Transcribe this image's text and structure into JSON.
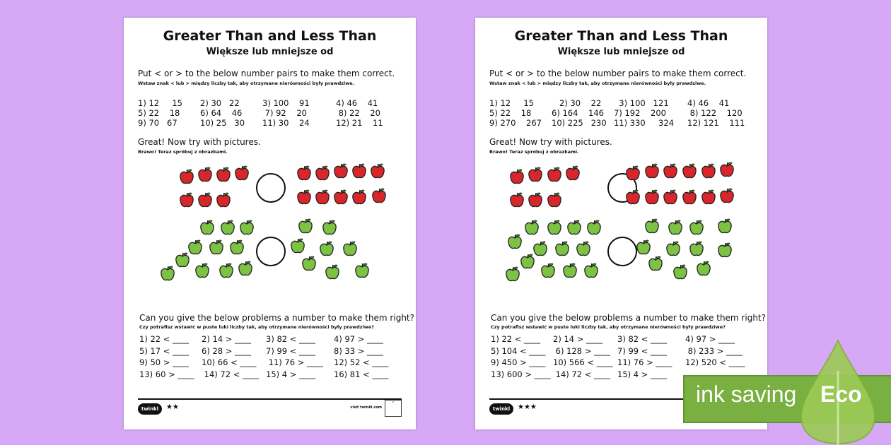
{
  "sheets": [
    {
      "title": "Greater Than and Less Than",
      "subtitle": "Większe lub mniejsze od",
      "instr1": "Put < or > to the below number pairs to make them correct.",
      "instr1_pl": "Wstaw znak < lub > między liczby tak, aby otrzymane nierówności były prawdziwe.",
      "pairs": [
        [
          "1) 12     15",
          "2) 30   22",
          "3) 100    91",
          "4) 46    41"
        ],
        [
          "5) 22    18",
          "6) 64    46",
          " 7) 92    20",
          " 8) 22    20"
        ],
        [
          "9) 70   67",
          "10) 25   30",
          "11) 30    24",
          "12) 21    11"
        ]
      ],
      "instr2": "Great! Now try with pictures.",
      "instr2_pl": "Brawo! Teraz spróbuj z obrazkami.",
      "instr3": "Can you give the below problems a number to make them right?",
      "instr3_pl": "Czy potrafisz wstawić w puste luki liczby tak, aby otrzymane nierówności były prawdziwe?",
      "problems": [
        [
          "1) 22 < ____",
          "2) 14 > ____",
          "3) 82 < ____",
          "4) 97 > ____"
        ],
        [
          "5) 17 < ____",
          "6) 28 > ____",
          "7) 99 < ____",
          "8) 33 > ____"
        ],
        [
          "9) 50 > ____",
          "10) 66 < ____",
          " 11) 76 > ____",
          "12) 52 < ____"
        ],
        [
          "13) 60 > ____",
          " 14) 72 < ____",
          "15) 4 > ____",
          "16) 81 < ____"
        ]
      ],
      "logo": "twinkl",
      "stars": "★★",
      "visit": "visit twinkl.com"
    },
    {
      "title": "Greater Than and Less Than",
      "subtitle": "Większe lub mniejsze od",
      "instr1": "Put < or > to the below number pairs to make them correct.",
      "instr1_pl": "Wstaw znak < lub > między liczby tak, aby otrzymane nierówności były prawdziwe.",
      "pairs": [
        [
          "1) 12     15",
          "   2) 30    22",
          "  3) 100   121",
          "4) 46    41"
        ],
        [
          "5) 22    18",
          "6) 164    146",
          "7) 192    200",
          " 8) 122    120"
        ],
        [
          "9) 270    267",
          "10) 225   230",
          "11) 330     324",
          "12) 121    111"
        ]
      ],
      "instr2": "Great! Now try with pictures.",
      "instr2_pl": "Brawo! Teraz spróbuj z obrazkami.",
      "instr3": "Can you give the below problems a number to make them right?",
      "instr3_pl": "Czy potrafisz wstawić w puste luki liczby tak, aby otrzymane nierówności były prawdziwe?",
      "problems": [
        [
          "1) 22 < ____",
          "2) 14 > ____",
          "3) 82 < ____",
          "4) 97 > ____"
        ],
        [
          "5) 104 < ____",
          " 6) 128 > ____",
          "7) 99 < ____",
          " 8) 233 > ____"
        ],
        [
          "9) 450 > ____",
          "10) 566 < ____",
          "11) 76 > ____",
          "12) 520 < ____"
        ],
        [
          "13) 600 > ____",
          " 14) 72 < ____",
          "15) 4 > ____",
          ""
        ]
      ],
      "logo": "twinkl",
      "stars": "★★★"
    }
  ],
  "eco": {
    "label": "ink saving",
    "word": "Eco"
  },
  "colors": {
    "background": "#d7a8f6",
    "red_apple": "#d8262b",
    "green_apple": "#7cc243",
    "eco": "#7ab041"
  }
}
